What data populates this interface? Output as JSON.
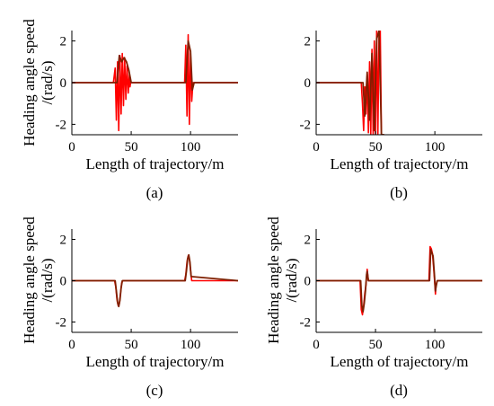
{
  "chart_data": [
    {
      "type": "line",
      "panel_label": "(a)",
      "xlabel": "Length of trajectory/m",
      "ylabel": "Heading angle speed\n/(rad/s)",
      "xlim": [
        0,
        140
      ],
      "ylim": [
        -2.5,
        2.5
      ],
      "xticks": [
        0,
        50,
        100
      ],
      "yticks": [
        2,
        0,
        -2
      ],
      "grid": false,
      "series": [
        {
          "color": "#ff0000",
          "x": [
            0,
            35,
            36.5,
            37.5,
            38.5,
            39.5,
            40.5,
            41.5,
            42.5,
            43.5,
            44.5,
            45.5,
            46.5,
            47.5,
            48.5,
            49,
            49.5,
            95,
            96,
            97,
            98,
            99,
            100,
            101,
            102,
            140
          ],
          "y": [
            0,
            0,
            0.7,
            -1.8,
            1.0,
            -2.3,
            1.3,
            -1.5,
            1.4,
            -1.1,
            1.2,
            -0.8,
            0.8,
            -0.5,
            0.4,
            -0.2,
            0,
            0,
            1.8,
            -1.6,
            2.3,
            -2.0,
            1.4,
            -0.9,
            0,
            0
          ]
        },
        {
          "color": "#7f1f00",
          "x": [
            0,
            38,
            40,
            42,
            44,
            46,
            48,
            50,
            96,
            98,
            100,
            101.5,
            103,
            140
          ],
          "y": [
            0,
            0,
            1.3,
            1.0,
            1.2,
            1.0,
            0.6,
            0,
            0,
            2.0,
            1.5,
            -0.35,
            0,
            0
          ]
        }
      ]
    },
    {
      "type": "line",
      "panel_label": "(b)",
      "xlabel": "Length of trajectory/m",
      "ylabel": "",
      "xlim": [
        0,
        140
      ],
      "ylim": [
        -2.5,
        2.5
      ],
      "xticks": [
        0,
        50,
        100
      ],
      "yticks": [
        2,
        0,
        -2
      ],
      "grid": false,
      "series": [
        {
          "color": "#ff0000",
          "x": [
            0,
            38,
            39,
            40,
            41,
            42,
            43,
            44,
            45,
            46,
            47,
            48,
            49,
            50,
            51,
            52,
            53,
            54,
            55,
            56,
            57
          ],
          "y": [
            0,
            0,
            -1.0,
            -2.3,
            -0.2,
            -1.5,
            0.4,
            -2.4,
            1.0,
            -2.5,
            1.6,
            -2.5,
            2.0,
            -2.5,
            2.5,
            -2.5,
            2.5,
            2.5,
            -2.5,
            -2.5,
            -2.5
          ]
        },
        {
          "color": "#7f1f00",
          "x": [
            0,
            39.5,
            41,
            43,
            45,
            47,
            49,
            51,
            53,
            55,
            57
          ],
          "y": [
            0,
            0,
            -1.6,
            0.5,
            -1.8,
            1.4,
            -2.3,
            2.1,
            2.5,
            -2.5,
            -2.5
          ]
        }
      ]
    },
    {
      "type": "line",
      "panel_label": "(c)",
      "xlabel": "Length of trajectory/m",
      "ylabel": "Heading angle speed\n/(rad/s)",
      "xlim": [
        0,
        140
      ],
      "ylim": [
        -2.5,
        2.5
      ],
      "xticks": [
        0,
        50,
        100
      ],
      "yticks": [
        2,
        0,
        -2
      ],
      "grid": false,
      "series": [
        {
          "color": "#ff0000",
          "x": [
            0,
            36,
            37,
            38,
            39,
            40,
            41,
            42,
            43,
            95,
            96,
            97,
            98,
            99,
            100,
            101,
            140
          ],
          "y": [
            0,
            0,
            -0.3,
            -0.9,
            -1.2,
            -1.1,
            -0.6,
            -0.1,
            0,
            0,
            0.3,
            0.9,
            1.2,
            1.05,
            0.5,
            0,
            0
          ]
        },
        {
          "color": "#7f1f00",
          "x": [
            0,
            36.5,
            37.5,
            38.5,
            39.5,
            40.5,
            41.5,
            42.5,
            95.5,
            96.5,
            97.5,
            98.5,
            99.5,
            100.5,
            140
          ],
          "y": [
            0,
            0,
            -0.5,
            -1.05,
            -1.25,
            -0.95,
            -0.35,
            0,
            0,
            0.45,
            1.05,
            1.25,
            0.9,
            0.2,
            0
          ]
        }
      ]
    },
    {
      "type": "line",
      "panel_label": "(d)",
      "xlabel": "Length of trajectory/m",
      "ylabel": "Heading angle speed\n/(rad/s)",
      "xlim": [
        0,
        140
      ],
      "ylim": [
        -2.5,
        2.5
      ],
      "xticks": [
        0,
        50,
        100
      ],
      "yticks": [
        2,
        0,
        -2
      ],
      "grid": false,
      "series": [
        {
          "color": "#ff0000",
          "x": [
            0,
            37,
            38,
            39,
            40,
            41,
            42,
            42.5,
            43,
            44,
            95,
            96,
            97,
            98,
            99,
            100,
            100.5,
            101,
            102,
            140
          ],
          "y": [
            0,
            0,
            -1.4,
            -1.65,
            -1.2,
            -0.6,
            -0.2,
            0.2,
            0.55,
            0,
            0,
            1.65,
            1.55,
            1.3,
            0.6,
            -0.2,
            -0.65,
            -0.2,
            0,
            0
          ]
        },
        {
          "color": "#7f1f00",
          "x": [
            0,
            37.5,
            38.5,
            39.5,
            40.5,
            41.5,
            42.5,
            43,
            44,
            95.5,
            96.5,
            97.5,
            98.5,
            99.5,
            100.5,
            101,
            102,
            140
          ],
          "y": [
            0,
            0,
            -1.2,
            -1.5,
            -1.1,
            -0.5,
            0.3,
            0.45,
            0,
            0,
            1.5,
            1.35,
            1.2,
            0.4,
            -0.5,
            -0.3,
            0,
            0
          ]
        }
      ]
    }
  ]
}
